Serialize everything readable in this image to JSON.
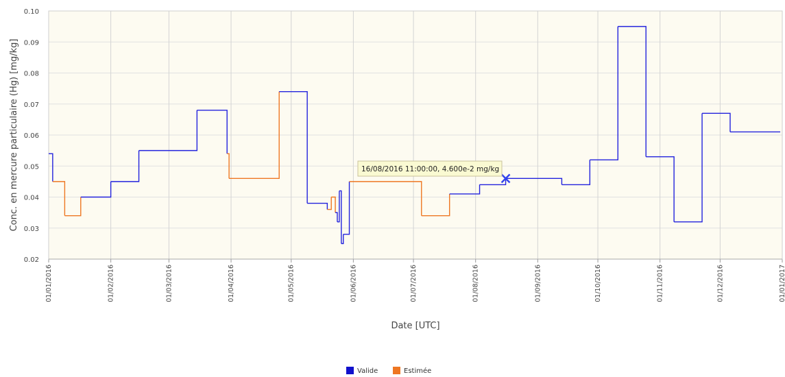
{
  "chart_data": {
    "type": "line",
    "step": true,
    "xlabel": "Date [UTC]",
    "ylabel": "Conc. en mercure particulaire (Hg) [mg/kg]",
    "ylim": [
      0.02,
      0.1
    ],
    "yticks": [
      "0.02",
      "0.03",
      "0.04",
      "0.05",
      "0.06",
      "0.07",
      "0.08",
      "0.09",
      "0.10"
    ],
    "xlim": [
      "01/01/2016",
      "01/01/2017"
    ],
    "xticks": [
      "01/01/2016",
      "01/02/2016",
      "01/03/2016",
      "01/04/2016",
      "01/05/2016",
      "01/06/2016",
      "01/07/2016",
      "01/08/2016",
      "01/09/2016",
      "01/10/2016",
      "01/11/2016",
      "01/12/2016",
      "01/01/2017"
    ],
    "grid": true,
    "legend_position": "bottom-center",
    "plot_background": "#fdfbf1",
    "series_styles": {
      "valid": "#2222dd",
      "estimated": "#ee7722"
    },
    "points": [
      {
        "date": "2016-01-01",
        "y": 0.054,
        "status": "valid"
      },
      {
        "date": "2016-01-03",
        "y": 0.045,
        "status": "estimated"
      },
      {
        "date": "2016-01-09",
        "y": 0.034,
        "status": "estimated"
      },
      {
        "date": "2016-01-17",
        "y": 0.04,
        "status": "valid"
      },
      {
        "date": "2016-02-01",
        "y": 0.045,
        "status": "valid"
      },
      {
        "date": "2016-02-15",
        "y": 0.055,
        "status": "valid"
      },
      {
        "date": "2016-03-15",
        "y": 0.068,
        "status": "valid"
      },
      {
        "date": "2016-03-30",
        "y": 0.054,
        "status": "estimated"
      },
      {
        "date": "2016-03-31",
        "y": 0.046,
        "status": "estimated"
      },
      {
        "date": "2016-04-25",
        "y": 0.074,
        "status": "valid"
      },
      {
        "date": "2016-05-09",
        "y": 0.038,
        "status": "valid"
      },
      {
        "date": "2016-05-19",
        "y": 0.036,
        "status": "estimated"
      },
      {
        "date": "2016-05-21",
        "y": 0.04,
        "status": "estimated"
      },
      {
        "date": "2016-05-23",
        "y": 0.035,
        "status": "valid"
      },
      {
        "date": "2016-05-24",
        "y": 0.032,
        "status": "valid"
      },
      {
        "date": "2016-05-25",
        "y": 0.042,
        "status": "valid"
      },
      {
        "date": "2016-05-26",
        "y": 0.025,
        "status": "valid"
      },
      {
        "date": "2016-05-27",
        "y": 0.028,
        "status": "valid"
      },
      {
        "date": "2016-05-30",
        "y": 0.045,
        "status": "estimated"
      },
      {
        "date": "2016-07-05",
        "y": 0.034,
        "status": "estimated"
      },
      {
        "date": "2016-07-19",
        "y": 0.041,
        "status": "valid"
      },
      {
        "date": "2016-08-03",
        "y": 0.044,
        "status": "valid"
      },
      {
        "date": "2016-08-16",
        "y": 0.046,
        "status": "valid"
      },
      {
        "date": "2016-09-13",
        "y": 0.044,
        "status": "valid"
      },
      {
        "date": "2016-09-27",
        "y": 0.052,
        "status": "valid"
      },
      {
        "date": "2016-10-11",
        "y": 0.095,
        "status": "valid"
      },
      {
        "date": "2016-10-25",
        "y": 0.053,
        "status": "valid"
      },
      {
        "date": "2016-11-08",
        "y": 0.032,
        "status": "valid"
      },
      {
        "date": "2016-11-22",
        "y": 0.067,
        "status": "valid"
      },
      {
        "date": "2016-12-06",
        "y": 0.061,
        "status": "valid"
      }
    ],
    "x_end": "2016-12-31",
    "highlight": {
      "date": "2016-08-16",
      "y": 0.046
    },
    "tooltip": "16/08/2016 11:00:00, 4.600e-2 mg/kg",
    "legend": [
      {
        "label": "Valide",
        "color": "#1111cc"
      },
      {
        "label": "Estimée",
        "color": "#ee7722"
      }
    ]
  }
}
